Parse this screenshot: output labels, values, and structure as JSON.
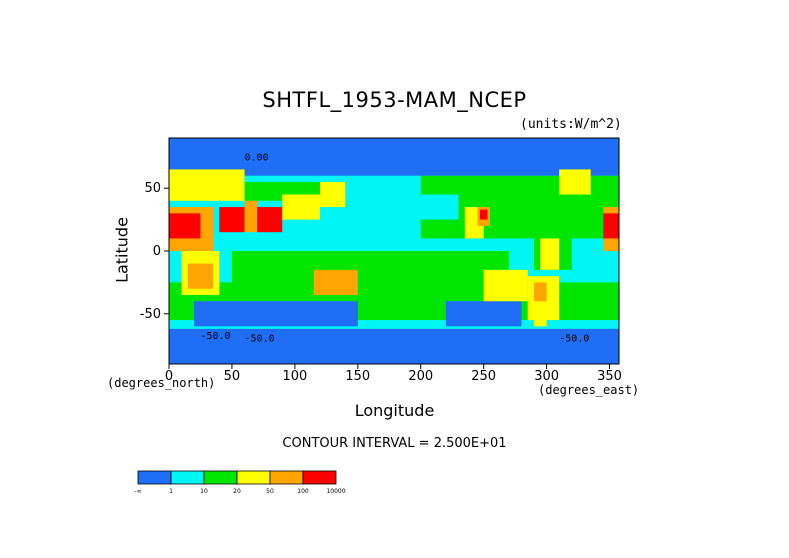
{
  "chart_data": {
    "type": "heatmap",
    "title": "SHTFL_1953-MAM_NCEP",
    "units": "(units:W/m^2)",
    "xlabel": "Longitude",
    "ylabel": "Latitude",
    "x_axis_note": "(degrees_east)",
    "y_axis_note": "(degrees_north)",
    "xlim": [
      0,
      357.5
    ],
    "ylim": [
      -90,
      90
    ],
    "xticks": [
      0,
      50,
      100,
      150,
      200,
      250,
      300,
      350
    ],
    "yticks": [
      -50,
      0,
      50
    ],
    "contour_interval": "CONTOUR INTERVAL = 2.500E+01",
    "contour_labels": [
      "0.00",
      "-50.0",
      "-50.0",
      "-50.0"
    ],
    "colorbar": {
      "colors": [
        "#1f6ef5",
        "#00f5f5",
        "#00e600",
        "#ffff00",
        "#ffa500",
        "#ff0000"
      ],
      "labels": [
        "-∞",
        "1",
        "10",
        "20",
        "50",
        "100",
        "10000"
      ]
    },
    "regions": [
      {
        "lat": [
          -90,
          90
        ],
        "lon": [
          0,
          360
        ],
        "class": 1
      },
      {
        "lat": [
          10,
          60
        ],
        "lon": [
          200,
          360
        ],
        "class": 2
      },
      {
        "lat": [
          -40,
          0
        ],
        "lon": [
          50,
          270
        ],
        "class": 2
      },
      {
        "lat": [
          -55,
          -25
        ],
        "lon": [
          0,
          360
        ],
        "class": 2
      },
      {
        "lat": [
          25,
          45
        ],
        "lon": [
          140,
          230
        ],
        "class": 1
      },
      {
        "lat": [
          -60,
          -40
        ],
        "lon": [
          20,
          150
        ],
        "class": 0
      },
      {
        "lat": [
          -60,
          -40
        ],
        "lon": [
          220,
          280
        ],
        "class": 0
      },
      {
        "lat": [
          -90,
          -62
        ],
        "lon": [
          0,
          360
        ],
        "class": 0
      },
      {
        "lat": [
          60,
          90
        ],
        "lon": [
          0,
          360
        ],
        "class": 0
      },
      {
        "lat": [
          10,
          35
        ],
        "lon": [
          235,
          250
        ],
        "class": 3
      },
      {
        "lat": [
          -40,
          -15
        ],
        "lon": [
          250,
          285
        ],
        "class": 3
      },
      {
        "lat": [
          -55,
          -20
        ],
        "lon": [
          285,
          310
        ],
        "class": 3
      },
      {
        "lat": [
          45,
          65
        ],
        "lon": [
          310,
          335
        ],
        "class": 3
      },
      {
        "lat": [
          40,
          65
        ],
        "lon": [
          0,
          60
        ],
        "class": 3
      },
      {
        "lat": [
          40,
          55
        ],
        "lon": [
          60,
          130
        ],
        "class": 2
      },
      {
        "lat": [
          35,
          55
        ],
        "lon": [
          120,
          140
        ],
        "class": 3
      },
      {
        "lat": [
          -35,
          0
        ],
        "lon": [
          10,
          40
        ],
        "class": 3
      },
      {
        "lat": [
          -30,
          -10
        ],
        "lon": [
          15,
          35
        ],
        "class": 4
      },
      {
        "lat": [
          -15,
          10
        ],
        "lon": [
          290,
          320
        ],
        "class": 2
      },
      {
        "lat": [
          -15,
          10
        ],
        "lon": [
          295,
          310
        ],
        "class": 3
      },
      {
        "lat": [
          0,
          35
        ],
        "lon": [
          345,
          360
        ],
        "class": 4
      },
      {
        "lat": [
          0,
          35
        ],
        "lon": [
          0,
          35
        ],
        "class": 4
      },
      {
        "lat": [
          10,
          30
        ],
        "lon": [
          0,
          25
        ],
        "class": 5
      },
      {
        "lat": [
          10,
          30
        ],
        "lon": [
          345,
          360
        ],
        "class": 5
      },
      {
        "lat": [
          15,
          35
        ],
        "lon": [
          40,
          60
        ],
        "class": 5
      },
      {
        "lat": [
          15,
          40
        ],
        "lon": [
          60,
          70
        ],
        "class": 4
      },
      {
        "lat": [
          15,
          35
        ],
        "lon": [
          70,
          90
        ],
        "class": 5
      },
      {
        "lat": [
          25,
          45
        ],
        "lon": [
          90,
          120
        ],
        "class": 3
      },
      {
        "lat": [
          -35,
          -15
        ],
        "lon": [
          115,
          150
        ],
        "class": 4
      },
      {
        "lat": [
          20,
          35
        ],
        "lon": [
          245,
          255
        ],
        "class": 4
      },
      {
        "lat": [
          25,
          33
        ],
        "lon": [
          247,
          253
        ],
        "class": 5
      },
      {
        "lat": [
          -40,
          -25
        ],
        "lon": [
          290,
          300
        ],
        "class": 4
      },
      {
        "lat": [
          -60,
          -50
        ],
        "lon": [
          290,
          300
        ],
        "class": 3
      }
    ]
  }
}
